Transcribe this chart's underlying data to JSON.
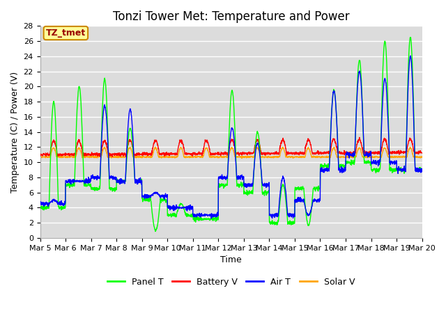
{
  "title": "Tonzi Tower Met: Temperature and Power",
  "xlabel": "Time",
  "ylabel": "Temperature (C) / Power (V)",
  "watermark_text": "TZ_tmet",
  "ylim": [
    0,
    28
  ],
  "yticks": [
    0,
    2,
    4,
    6,
    8,
    10,
    12,
    14,
    16,
    18,
    20,
    22,
    24,
    26,
    28
  ],
  "xtick_labels": [
    "Mar 5",
    "Mar 6",
    "Mar 7",
    "Mar 8",
    "Mar 9",
    "Mar 10",
    "Mar 11",
    "Mar 12",
    "Mar 13",
    "Mar 14",
    "Mar 15",
    "Mar 16",
    "Mar 17",
    "Mar 18",
    "Mar 19",
    "Mar 20"
  ],
  "colors": {
    "panel_t": "#00FF00",
    "battery_v": "#FF0000",
    "air_t": "#0000FF",
    "solar_v": "#FFA500"
  },
  "legend_labels": [
    "Panel T",
    "Battery V",
    "Air T",
    "Solar V"
  ],
  "axes_bg": "#DCDCDC",
  "watermark_bg": "#FFFF99",
  "watermark_border": "#CC8800",
  "title_fontsize": 12,
  "label_fontsize": 9,
  "tick_fontsize": 8,
  "panel_peaks": [
    18.0,
    20.0,
    21.0,
    14.5,
    1.0,
    4.5,
    2.5,
    19.5,
    14.0,
    7.0,
    1.7,
    19.5,
    23.5,
    26.0,
    26.5
  ],
  "panel_valleys": [
    4.0,
    7.0,
    6.5,
    7.5,
    5.0,
    3.0,
    2.5,
    7.0,
    6.0,
    2.0,
    6.5,
    9.5,
    10.0,
    9.0,
    9.0
  ],
  "air_peaks": [
    5.0,
    7.5,
    17.5,
    17.0,
    6.0,
    4.0,
    3.0,
    14.5,
    12.5,
    8.0,
    3.0,
    19.5,
    22.0,
    21.0,
    24.0
  ],
  "air_valleys": [
    4.5,
    7.5,
    8.0,
    7.5,
    5.5,
    4.0,
    3.0,
    8.0,
    7.0,
    3.0,
    5.0,
    9.0,
    11.0,
    10.0,
    9.0
  ],
  "batt_base": 11.0,
  "batt_bump": 1.8,
  "solar_base": 10.7,
  "solar_bump": 1.2
}
